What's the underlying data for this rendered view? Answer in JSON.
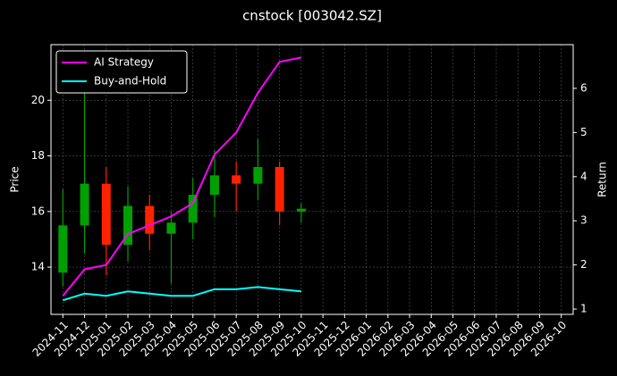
{
  "chart_data": {
    "type": "candlestick",
    "title": "cnstock [003042.SZ]",
    "ylabel": "Price",
    "y2label": "Return",
    "x": [
      "2024-11",
      "2024-12",
      "2025-01",
      "2025-02",
      "2025-03",
      "2025-04",
      "2025-05",
      "2025-06",
      "2025-07",
      "2025-08",
      "2025-09",
      "2025-10"
    ],
    "open": [
      13.8,
      15.5,
      17.0,
      14.8,
      16.2,
      15.2,
      15.6,
      16.6,
      17.3,
      17.0,
      17.6,
      16.0
    ],
    "high": [
      16.8,
      20.9,
      17.6,
      16.9,
      16.6,
      16.0,
      17.2,
      18.2,
      17.8,
      18.6,
      17.8,
      16.3
    ],
    "low": [
      13.3,
      14.5,
      13.7,
      14.2,
      14.6,
      13.4,
      15.0,
      15.8,
      16.0,
      16.4,
      15.5,
      15.6
    ],
    "close": [
      15.5,
      17.0,
      14.8,
      16.2,
      15.2,
      15.6,
      16.6,
      17.3,
      17.0,
      17.6,
      16.0,
      16.1
    ],
    "up_color": "#00a000",
    "down_color": "#ff2200",
    "lines": [
      {
        "name": "AI Strategy",
        "color": "#ff00ff",
        "axis": "y2",
        "values": [
          1.3,
          1.9,
          2.0,
          2.7,
          2.9,
          3.1,
          3.4,
          4.5,
          5.0,
          5.9,
          6.6,
          6.7
        ]
      },
      {
        "name": "Buy-and-Hold",
        "color": "#00ffff",
        "axis": "y2",
        "values": [
          1.2,
          1.35,
          1.3,
          1.4,
          1.35,
          1.3,
          1.3,
          1.45,
          1.45,
          1.5,
          1.45,
          1.4
        ]
      }
    ],
    "ylim": [
      12.3,
      22.0
    ],
    "yticks": [
      14,
      16,
      18,
      20
    ],
    "y2lim": [
      0.88,
      6.99
    ],
    "y2ticks": [
      1,
      2,
      3,
      4,
      5,
      6
    ],
    "xticks": [
      "2024-11",
      "2024-12",
      "2025-01",
      "2025-02",
      "2025-03",
      "2025-04",
      "2025-05",
      "2025-06",
      "2025-07",
      "2025-08",
      "2025-09",
      "2025-10",
      "2025-11",
      "2025-12",
      "2026-01",
      "2026-02",
      "2026-03",
      "2026-04",
      "2026-05",
      "2026-06",
      "2026-07",
      "2026-08",
      "2026-09",
      "2026-10"
    ],
    "grid": true,
    "legend": "upper left"
  }
}
